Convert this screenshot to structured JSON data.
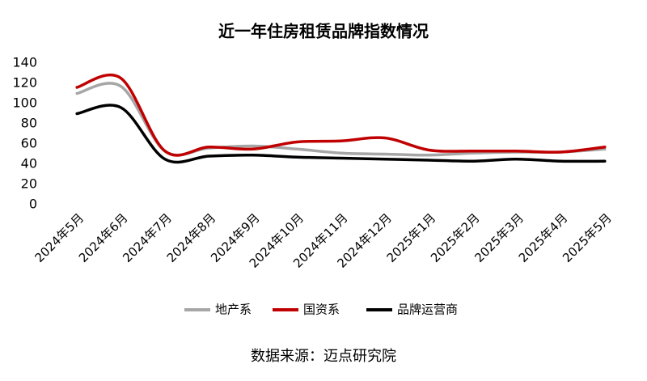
{
  "chart_data": {
    "type": "line",
    "title": "近一年住房租赁品牌指数情况",
    "categories": [
      "2024年5月",
      "2024年6月",
      "2024年7月",
      "2024年8月",
      "2024年9月",
      "2024年10月",
      "2024年11月",
      "2024年12月",
      "2025年1月",
      "2025年2月",
      "2025年3月",
      "2025年4月",
      "2025年5月"
    ],
    "series": [
      {
        "name": "地产系",
        "color": "#a6a6a6",
        "values": [
          110,
          117,
          53,
          56,
          58,
          55,
          51,
          50,
          49,
          51,
          52,
          52,
          55
        ]
      },
      {
        "name": "国资系",
        "color": "#c00000",
        "values": [
          116,
          125,
          53,
          57,
          55,
          62,
          63,
          66,
          54,
          53,
          53,
          52,
          57
        ]
      },
      {
        "name": "品牌运营商",
        "color": "#000000",
        "values": [
          90,
          96,
          45,
          48,
          49,
          47,
          46,
          45,
          44,
          43,
          45,
          43,
          43
        ]
      }
    ],
    "ylim": [
      0,
      140
    ],
    "yticks": [
      0,
      20,
      40,
      60,
      80,
      100,
      120,
      140
    ],
    "grid": false,
    "legend": "bottom",
    "source": "数据来源：迈点研究院"
  }
}
